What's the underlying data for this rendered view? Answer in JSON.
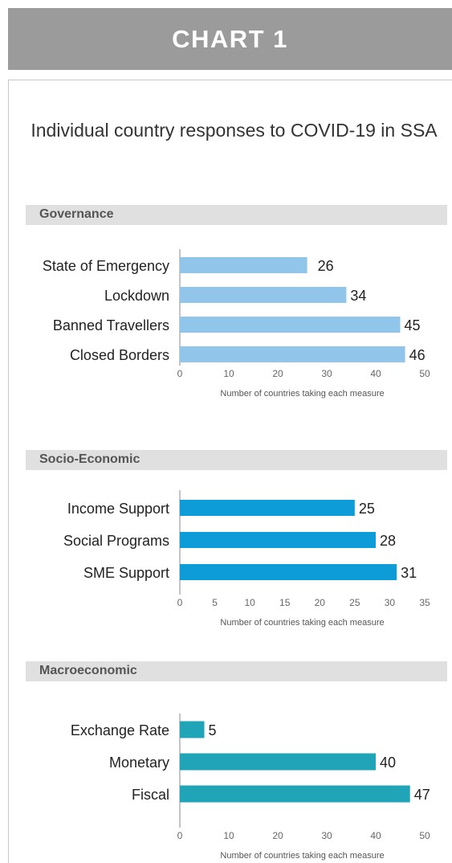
{
  "header": {
    "title": "CHART 1"
  },
  "main_title": "Individual country responses to COVID-19 in SSA",
  "sections": [
    {
      "label": "Governance"
    },
    {
      "label": "Socio-Economic"
    },
    {
      "label": "Macroeconomic"
    }
  ],
  "chart_data": [
    {
      "type": "bar",
      "orientation": "horizontal",
      "title": "Governance",
      "categories": [
        "State of Emergency",
        "Lockdown",
        "Banned Travellers",
        "Closed Borders"
      ],
      "values": [
        26,
        34,
        45,
        46
      ],
      "xlabel": "Number of countries taking each measure",
      "xlim": [
        0,
        50
      ],
      "xticks": [
        0,
        10,
        20,
        30,
        40,
        50
      ],
      "color": "#92c5ea",
      "grid": false
    },
    {
      "type": "bar",
      "orientation": "horizontal",
      "title": "Socio-Economic",
      "categories": [
        "Income Support",
        "Social Programs",
        "SME Support"
      ],
      "values": [
        25,
        28,
        31
      ],
      "xlabel": "Number of countries taking each measure",
      "xlim": [
        0,
        35
      ],
      "xticks": [
        0,
        5,
        10,
        15,
        20,
        25,
        30,
        35
      ],
      "color": "#0e9cd9",
      "grid": false
    },
    {
      "type": "bar",
      "orientation": "horizontal",
      "title": "Macroeconomic",
      "categories": [
        "Exchange Rate",
        "Monetary",
        "Fiscal"
      ],
      "values": [
        5,
        40,
        47
      ],
      "xlabel": "Number of countries taking each measure",
      "xlim": [
        0,
        50
      ],
      "xticks": [
        0,
        10,
        20,
        30,
        40,
        50
      ],
      "color": "#1fa4b8",
      "grid": false
    }
  ]
}
